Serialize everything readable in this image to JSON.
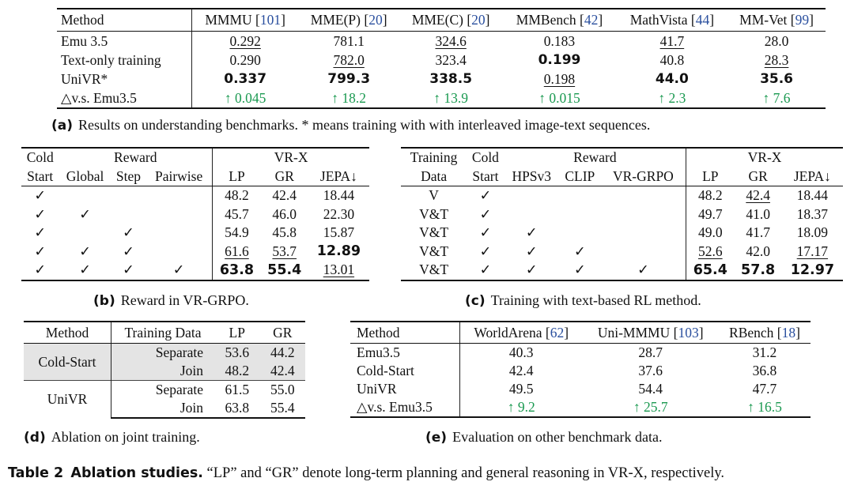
{
  "table_a": {
    "method_header": "Method",
    "columns": [
      {
        "name": "MMMU",
        "ref": "101"
      },
      {
        "name": "MME(P)",
        "ref": "20"
      },
      {
        "name": "MME(C)",
        "ref": "20"
      },
      {
        "name": "MMBench",
        "ref": "42"
      },
      {
        "name": "MathVista",
        "ref": "44"
      },
      {
        "name": "MM-Vet",
        "ref": "99"
      }
    ],
    "rows": [
      {
        "method": "Emu 3.5",
        "values": [
          "0.292",
          "781.1",
          "324.6",
          "0.183",
          "41.7",
          "28.0"
        ]
      },
      {
        "method": "Text-only training",
        "values": [
          "0.290",
          "782.0",
          "323.4",
          "0.199",
          "40.8",
          "28.3"
        ]
      },
      {
        "method": "UniVR*",
        "values": [
          "0.337",
          "799.3",
          "338.5",
          "0.198",
          "44.0",
          "35.6"
        ]
      },
      {
        "method": "△v.s. Emu3.5",
        "values": [
          "↑ 0.045",
          "↑ 18.2",
          "↑ 13.9",
          "↑ 0.015",
          "↑ 2.3",
          "↑ 7.6"
        ]
      }
    ],
    "caption_label": "(a)",
    "caption_text": "Results on understanding benchmarks. * means training with with interleaved image-text sequences."
  },
  "table_b": {
    "group_headers": {
      "cold_start_1": "Cold",
      "cold_start_2": "Start",
      "reward": "Reward",
      "vrx": "VR-X"
    },
    "sub_headers": [
      "Global",
      "Step",
      "Pairwise",
      "LP",
      "GR",
      "JEPA↓"
    ],
    "check": "✓",
    "rows": [
      {
        "cold": "✓",
        "global": "",
        "step": "",
        "pairwise": "",
        "lp": "48.2",
        "gr": "42.4",
        "jepa": "18.44"
      },
      {
        "cold": "✓",
        "global": "✓",
        "step": "",
        "pairwise": "",
        "lp": "45.7",
        "gr": "46.0",
        "jepa": "22.30"
      },
      {
        "cold": "✓",
        "global": "",
        "step": "✓",
        "pairwise": "",
        "lp": "54.9",
        "gr": "45.8",
        "jepa": "15.87"
      },
      {
        "cold": "✓",
        "global": "✓",
        "step": "✓",
        "pairwise": "",
        "lp": "61.6",
        "gr": "53.7",
        "jepa": "12.89"
      },
      {
        "cold": "✓",
        "global": "✓",
        "step": "✓",
        "pairwise": "✓",
        "lp": "63.8",
        "gr": "55.4",
        "jepa": "13.01"
      }
    ],
    "caption_label": "(b)",
    "caption_text": "Reward in VR-GRPO."
  },
  "table_c": {
    "group_headers": {
      "training_1": "Training",
      "training_2": "Data",
      "cold_1": "Cold",
      "cold_2": "Start",
      "reward": "Reward",
      "vrx": "VR-X"
    },
    "sub_headers": [
      "HPSv3",
      "CLIP",
      "VR-GRPO",
      "LP",
      "GR",
      "JEPA↓"
    ],
    "rows": [
      {
        "data": "V",
        "cold": "✓",
        "hps": "",
        "clip": "",
        "vrgrpo": "",
        "lp": "48.2",
        "gr": "42.4",
        "jepa": "18.44"
      },
      {
        "data": "V&T",
        "cold": "✓",
        "hps": "",
        "clip": "",
        "vrgrpo": "",
        "lp": "49.7",
        "gr": "41.0",
        "jepa": "18.37"
      },
      {
        "data": "V&T",
        "cold": "✓",
        "hps": "✓",
        "clip": "",
        "vrgrpo": "",
        "lp": "49.0",
        "gr": "41.7",
        "jepa": "18.09"
      },
      {
        "data": "V&T",
        "cold": "✓",
        "hps": "✓",
        "clip": "✓",
        "vrgrpo": "",
        "lp": "52.6",
        "gr": "42.0",
        "jepa": "17.17"
      },
      {
        "data": "V&T",
        "cold": "✓",
        "hps": "✓",
        "clip": "✓",
        "vrgrpo": "✓",
        "lp": "65.4",
        "gr": "57.8",
        "jepa": "12.97"
      }
    ],
    "caption_label": "(c)",
    "caption_text": "Training with text-based RL method."
  },
  "table_d": {
    "headers": [
      "Method",
      "Training Data",
      "LP",
      "GR"
    ],
    "groups": [
      {
        "method": "Cold-Start",
        "rows": [
          {
            "data": "Separate",
            "lp": "53.6",
            "gr": "44.2"
          },
          {
            "data": "Join",
            "lp": "48.2",
            "gr": "42.4"
          }
        ]
      },
      {
        "method": "UniVR",
        "rows": [
          {
            "data": "Separate",
            "lp": "61.5",
            "gr": "55.0"
          },
          {
            "data": "Join",
            "lp": "63.8",
            "gr": "55.4"
          }
        ]
      }
    ],
    "caption_label": "(d)",
    "caption_text": "Ablation on joint training."
  },
  "table_e": {
    "method_header": "Method",
    "columns": [
      {
        "name": "WorldArena",
        "ref": "62"
      },
      {
        "name": "Uni-MMMU",
        "ref": "103"
      },
      {
        "name": "RBench",
        "ref": "18"
      }
    ],
    "rows": [
      {
        "method": "Emu3.5",
        "values": [
          "40.3",
          "28.7",
          "31.2"
        ]
      },
      {
        "method": "Cold-Start",
        "values": [
          "42.4",
          "37.6",
          "36.8"
        ]
      },
      {
        "method": "UniVR",
        "values": [
          "49.5",
          "54.4",
          "47.7"
        ]
      },
      {
        "method": "△v.s. Emu3.5",
        "values": [
          "↑ 9.2",
          "↑ 25.7",
          "↑ 16.5"
        ]
      }
    ],
    "caption_label": "(e)",
    "caption_text": "Evaluation on other benchmark data."
  },
  "table_caption": {
    "label": "Table 2",
    "title": "Ablation studies.",
    "text": "“LP” and “GR” denote long-term planning and general reasoning in VR-X, respectively."
  },
  "colors": {
    "gain": "#1a9950",
    "citation": "#2a4f9e"
  }
}
